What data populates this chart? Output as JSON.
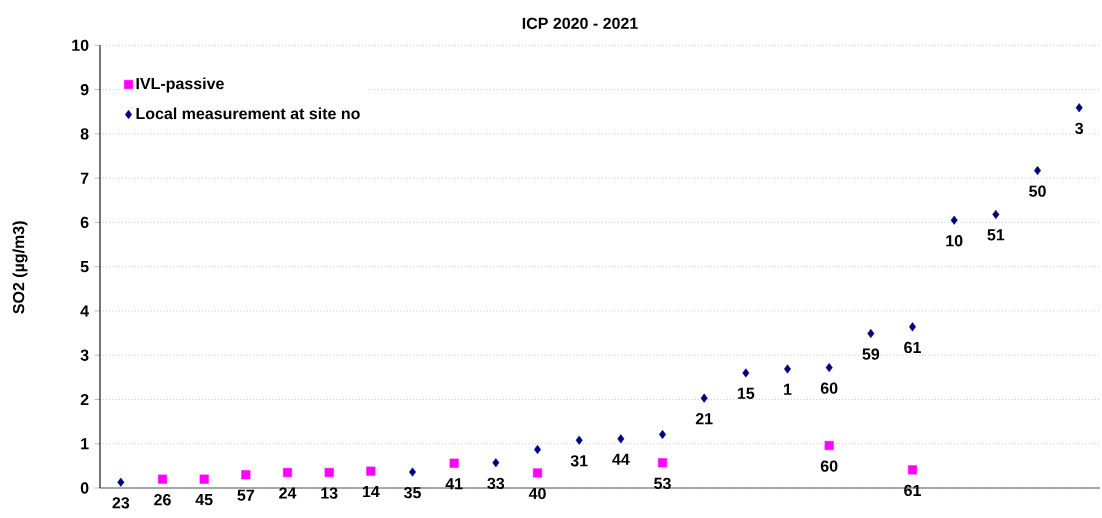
{
  "chart_data": {
    "type": "scatter",
    "title": "ICP 2020 - 2021",
    "ylabel": "SO2 (µg/m3)",
    "categories": [
      "23",
      "26",
      "45",
      "57",
      "24",
      "13",
      "14",
      "35",
      "41",
      "33",
      "40",
      "31",
      "44",
      "53",
      "21",
      "15",
      "1",
      "60",
      "59",
      "61",
      "10",
      "51",
      "50",
      "3"
    ],
    "ylim": [
      0,
      10
    ],
    "yticks": [
      0,
      1,
      2,
      3,
      4,
      5,
      6,
      7,
      8,
      9,
      10
    ],
    "grid": "y",
    "legend": "top left",
    "series": [
      {
        "name": "IVL-passive",
        "color": "#ff00ff",
        "marker": "square",
        "values": [
          null,
          0.2,
          0.2,
          0.3,
          0.35,
          0.35,
          0.38,
          null,
          0.56,
          null,
          0.34,
          null,
          null,
          0.57,
          null,
          null,
          null,
          0.96,
          null,
          0.41,
          null,
          null,
          null,
          null
        ]
      },
      {
        "name": "Local measurement at site no",
        "color": "#000080",
        "marker": "diamond",
        "values": [
          0.13,
          null,
          null,
          null,
          null,
          null,
          null,
          0.36,
          null,
          0.57,
          0.87,
          1.08,
          1.11,
          1.21,
          2.03,
          2.6,
          2.69,
          2.72,
          3.49,
          3.64,
          6.05,
          6.18,
          7.17,
          8.59
        ]
      }
    ],
    "annotations": [
      {
        "text": "60",
        "x": "60",
        "y": 2.72
      },
      {
        "text": "61",
        "x": "61",
        "y": 3.64
      }
    ]
  }
}
